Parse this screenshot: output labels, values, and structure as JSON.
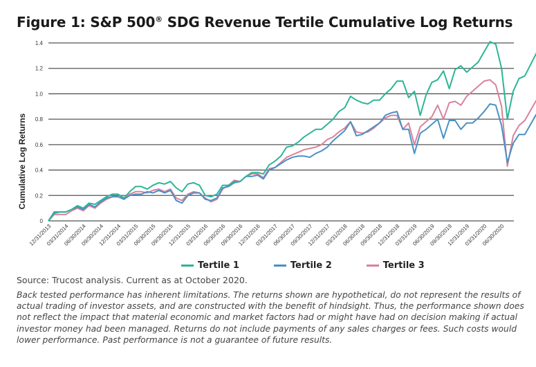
{
  "title_main": "Figure 1: S&P 500",
  "title_reg": "®",
  "title_rest": " SDG Revenue Tertile Cumulative Log Returns",
  "source": "Source: Trucost analysis. Current as at October 2020.",
  "disclaimer": "Back tested performance has inherent limitations. The returns shown are hypothetical, do not represent the results of actual trading of investor assets, and are constructed with the benefit of hindsight. Thus, the performance shown does not reflect the impact that material economic and market factors had or might have had on decision making if actual investor money had been managed. Returns do not include payments of any sales charges or fees. Such costs would lower performance. Past performance is not a guarantee of future results.",
  "chart_data": {
    "type": "line",
    "title": "Figure 1: S&P 500® SDG Revenue Tertile Cumulative Log Returns",
    "xlabel": "",
    "ylabel": "Cumulative Log Returns",
    "ylim": [
      0,
      1.4
    ],
    "yticks": [
      "0",
      "0.2",
      "0.4",
      "0.6",
      "0.8",
      "1.0",
      "1.2",
      "1.4"
    ],
    "ytick_values": [
      0,
      0.2,
      0.4,
      0.6,
      0.8,
      1.0,
      1.2,
      1.4
    ],
    "grid": true,
    "legend": "bottom",
    "xtick_labels": [
      "12/31/2013",
      "03/31/2014",
      "06/30/2014",
      "09/30/2014",
      "12/31/2014",
      "03/31/2015",
      "06/30/2015",
      "09/30/2015",
      "12/31/2015",
      "03/31/2016",
      "06/30/2016",
      "09/30/2016",
      "12/31/2016",
      "03/31/2017",
      "06/30/2017",
      "09/30/2017",
      "12/31/2017",
      "03/31/2018",
      "06/30/2018",
      "09/30/2018",
      "12/31/2018",
      "03/31/2019",
      "06/30/2019",
      "09/30/2019",
      "12/31/2019",
      "03/31/2020",
      "06/30/2020"
    ],
    "x_frequency": "monthly, from 12/31/2013",
    "series": [
      {
        "name": "Tertile 1",
        "color": "#2bb596",
        "values": [
          0,
          0.06,
          0.07,
          0.07,
          0.09,
          0.12,
          0.1,
          0.14,
          0.13,
          0.16,
          0.19,
          0.21,
          0.21,
          0.18,
          0.23,
          0.27,
          0.27,
          0.25,
          0.28,
          0.3,
          0.29,
          0.31,
          0.26,
          0.23,
          0.29,
          0.3,
          0.28,
          0.2,
          0.19,
          0.21,
          0.28,
          0.28,
          0.31,
          0.31,
          0.35,
          0.38,
          0.38,
          0.37,
          0.44,
          0.47,
          0.51,
          0.58,
          0.59,
          0.62,
          0.66,
          0.69,
          0.72,
          0.72,
          0.76,
          0.8,
          0.86,
          0.89,
          0.98,
          0.95,
          0.93,
          0.92,
          0.95,
          0.95,
          1.0,
          1.04,
          1.1,
          1.1,
          0.97,
          1.02,
          0.83,
          0.99,
          1.09,
          1.11,
          1.18,
          1.04,
          1.19,
          1.22,
          1.17,
          1.21,
          1.25,
          1.33,
          1.41,
          1.39,
          1.2,
          0.8,
          1.02,
          1.12,
          1.14,
          1.23,
          1.32,
          1.27
        ]
      },
      {
        "name": "Tertile 2",
        "color": "#4a90c4",
        "values": [
          0,
          0.07,
          0.07,
          0.07,
          0.09,
          0.11,
          0.09,
          0.13,
          0.11,
          0.15,
          0.18,
          0.19,
          0.19,
          0.17,
          0.2,
          0.21,
          0.21,
          0.23,
          0.22,
          0.24,
          0.22,
          0.24,
          0.16,
          0.14,
          0.2,
          0.22,
          0.22,
          0.17,
          0.16,
          0.18,
          0.26,
          0.27,
          0.3,
          0.31,
          0.35,
          0.35,
          0.36,
          0.33,
          0.4,
          0.42,
          0.45,
          0.48,
          0.5,
          0.51,
          0.51,
          0.5,
          0.53,
          0.55,
          0.58,
          0.63,
          0.67,
          0.71,
          0.78,
          0.67,
          0.68,
          0.71,
          0.74,
          0.77,
          0.83,
          0.85,
          0.86,
          0.72,
          0.72,
          0.53,
          0.69,
          0.72,
          0.76,
          0.8,
          0.65,
          0.79,
          0.79,
          0.72,
          0.77,
          0.77,
          0.81,
          0.86,
          0.92,
          0.91,
          0.75,
          0.46,
          0.61,
          0.68,
          0.68,
          0.76,
          0.84,
          0.82
        ]
      },
      {
        "name": "Tertile 3",
        "color": "#d9819c",
        "values": [
          0,
          0.05,
          0.05,
          0.05,
          0.08,
          0.1,
          0.08,
          0.12,
          0.1,
          0.14,
          0.17,
          0.19,
          0.19,
          0.18,
          0.21,
          0.23,
          0.23,
          0.22,
          0.24,
          0.25,
          0.23,
          0.25,
          0.18,
          0.16,
          0.21,
          0.23,
          0.22,
          0.18,
          0.15,
          0.17,
          0.25,
          0.28,
          0.32,
          0.31,
          0.35,
          0.37,
          0.37,
          0.34,
          0.41,
          0.42,
          0.46,
          0.5,
          0.52,
          0.54,
          0.56,
          0.57,
          0.58,
          0.6,
          0.64,
          0.66,
          0.7,
          0.73,
          0.78,
          0.7,
          0.69,
          0.7,
          0.73,
          0.77,
          0.81,
          0.83,
          0.83,
          0.72,
          0.77,
          0.6,
          0.74,
          0.78,
          0.82,
          0.91,
          0.8,
          0.93,
          0.94,
          0.91,
          0.98,
          1.02,
          1.06,
          1.1,
          1.11,
          1.07,
          0.9,
          0.43,
          0.67,
          0.75,
          0.79,
          0.87,
          0.95,
          0.89
        ]
      }
    ]
  }
}
